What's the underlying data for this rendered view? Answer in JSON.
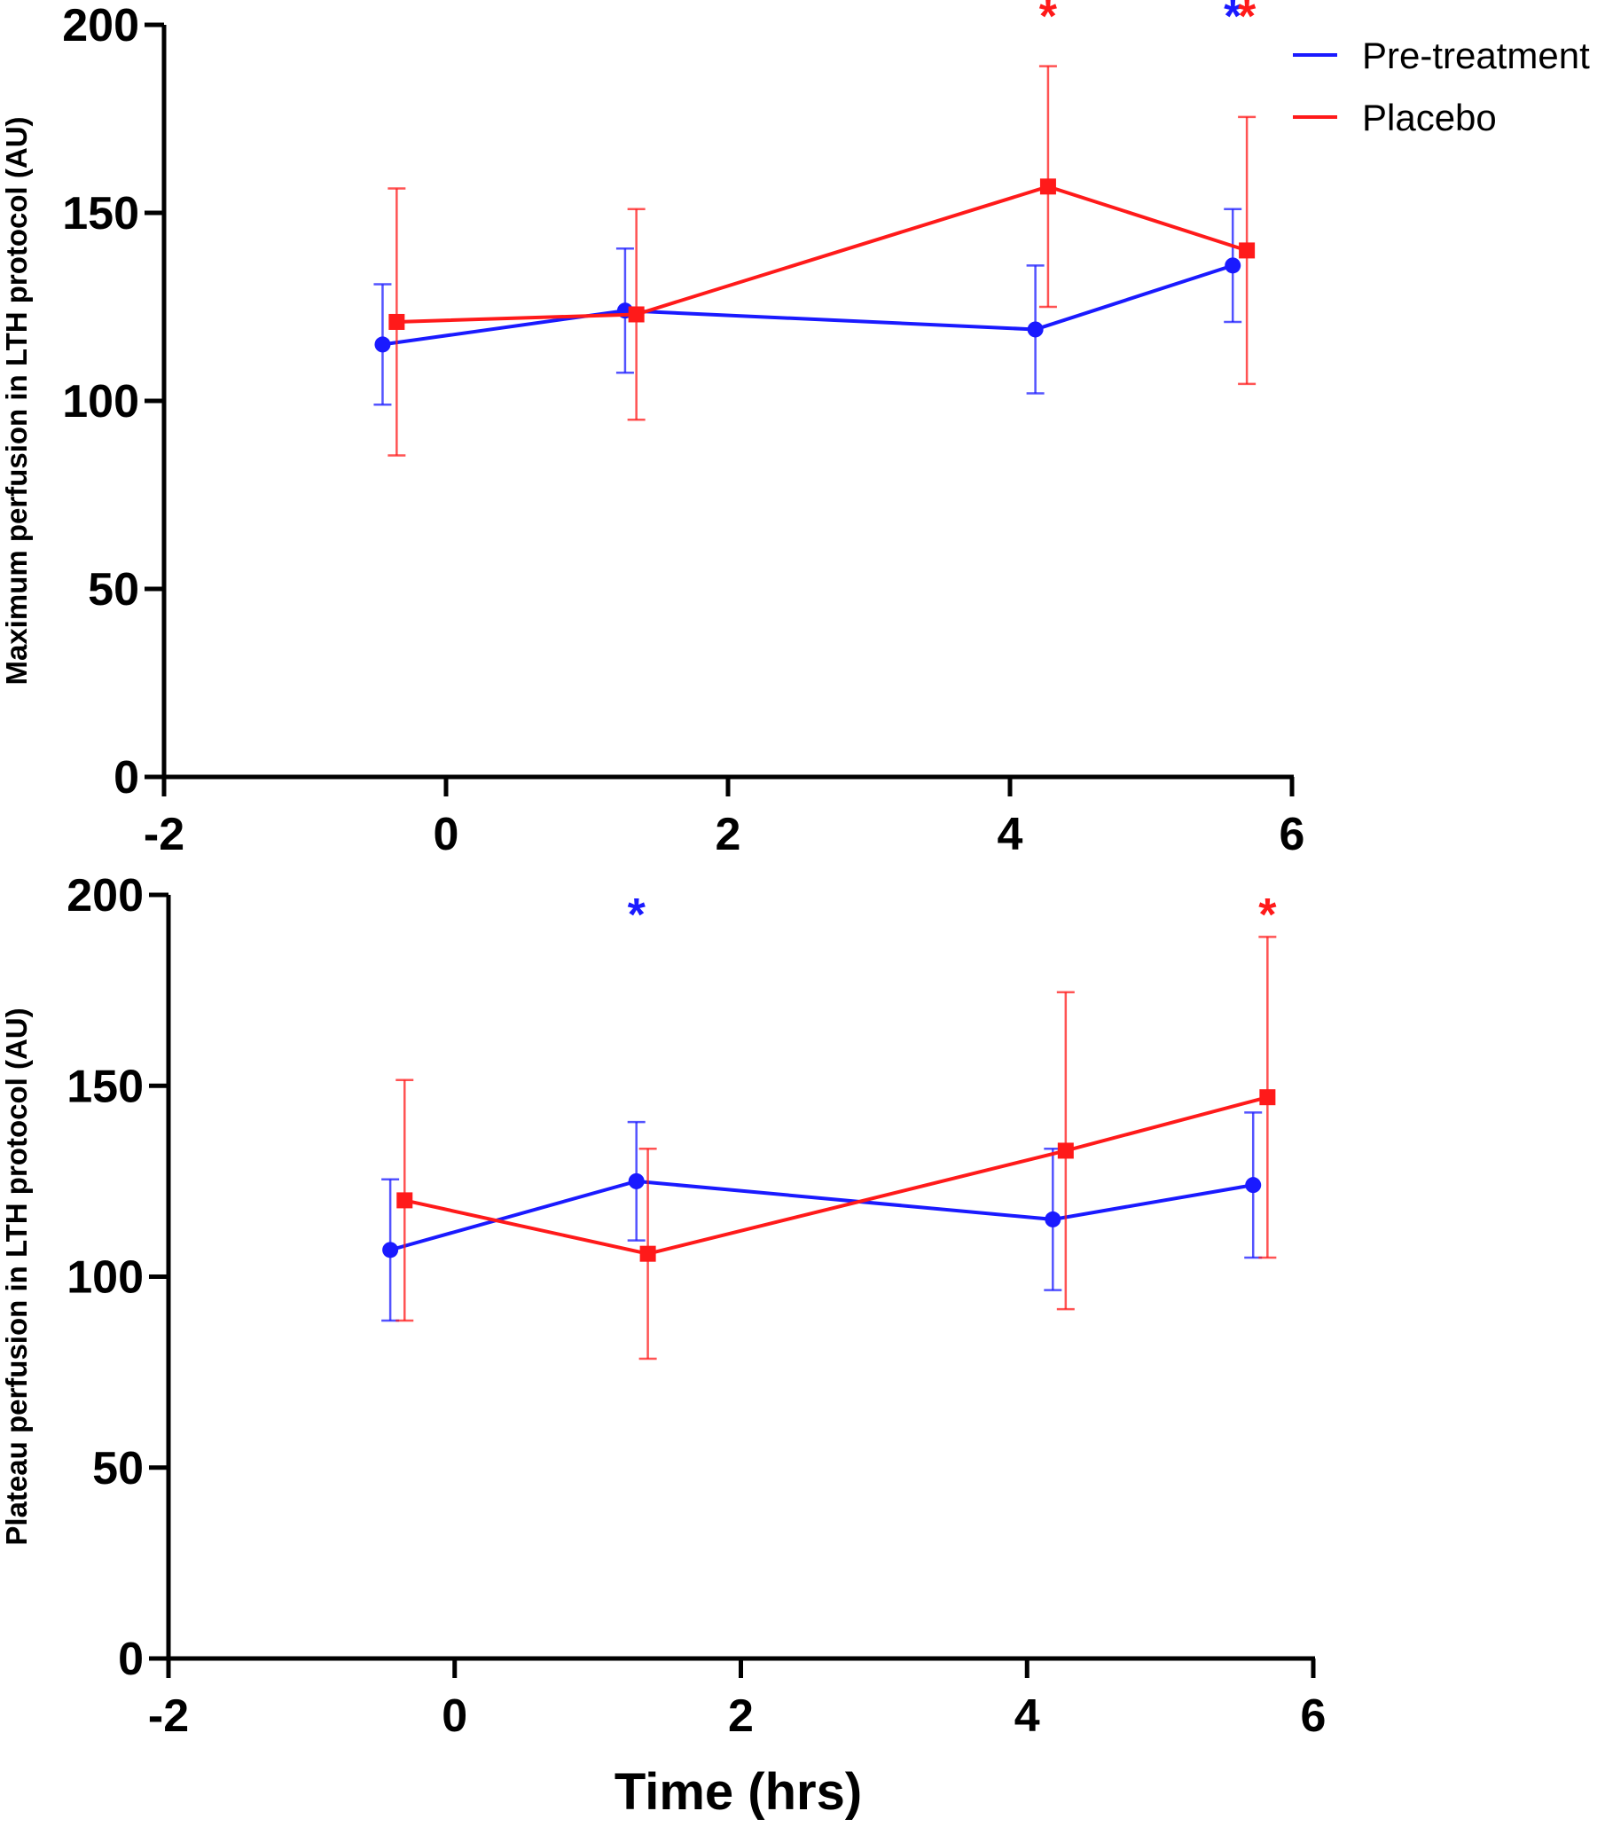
{
  "chart_data": [
    {
      "type": "line",
      "ylabel": "Maximum perfusion in LTH protocol (AU)",
      "xlabel": "",
      "xlim": [
        -2,
        6
      ],
      "ylim": [
        0,
        200
      ],
      "xticks": [
        "-2",
        "0",
        "2",
        "4",
        "6"
      ],
      "yticks": [
        "0",
        "50",
        "100",
        "150",
        "200"
      ],
      "legend": {
        "placement": "top-right",
        "entries": [
          "Pre-treatment",
          "Placebo"
        ]
      },
      "series": [
        {
          "name": "Pre-treatment",
          "color": "#1a1aff",
          "marker": "circle",
          "x": [
            -0.45,
            1.27,
            4.18,
            5.58
          ],
          "y": [
            115,
            124,
            119,
            136
          ],
          "err": [
            16,
            16.5,
            17,
            15
          ],
          "significance": [
            "",
            "",
            "",
            "*"
          ]
        },
        {
          "name": "Placebo",
          "color": "#ff1a1a",
          "marker": "square",
          "x": [
            -0.35,
            1.35,
            4.27,
            5.68
          ],
          "y": [
            121,
            123,
            157,
            140
          ],
          "err": [
            35.5,
            28,
            32,
            35.5
          ],
          "significance": [
            "",
            "",
            "*",
            "*"
          ]
        }
      ]
    },
    {
      "type": "line",
      "ylabel": "Plateau perfusion in LTH protocol (AU)",
      "xlabel": "Time (hrs)",
      "xlim": [
        -2,
        6
      ],
      "ylim": [
        0,
        200
      ],
      "xticks": [
        "-2",
        "0",
        "2",
        "4",
        "6"
      ],
      "yticks": [
        "0",
        "50",
        "100",
        "150",
        "200"
      ],
      "series": [
        {
          "name": "Pre-treatment",
          "color": "#1a1aff",
          "marker": "circle",
          "x": [
            -0.45,
            1.27,
            4.18,
            5.58
          ],
          "y": [
            107,
            125,
            115,
            124
          ],
          "err": [
            18.5,
            15.5,
            18.5,
            19
          ],
          "significance": [
            "",
            "*",
            "",
            ""
          ]
        },
        {
          "name": "Placebo",
          "color": "#ff1a1a",
          "marker": "square",
          "x": [
            -0.35,
            1.35,
            4.27,
            5.68
          ],
          "y": [
            120,
            106,
            133,
            147
          ],
          "err": [
            31.5,
            27.5,
            41.5,
            42
          ],
          "significance": [
            "",
            "",
            "",
            "*"
          ]
        }
      ]
    }
  ]
}
